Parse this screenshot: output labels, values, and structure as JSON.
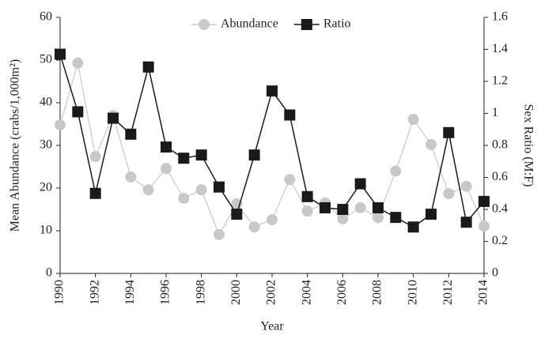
{
  "chart_data": {
    "type": "line",
    "x_label": "Year",
    "y_label": "Mean Abundance (crabs/1,000m²)",
    "y2_label": "Sex Ratio (M:F)",
    "x": [
      1990,
      1991,
      1992,
      1993,
      1994,
      1995,
      1996,
      1997,
      1998,
      1999,
      2000,
      2001,
      2002,
      2003,
      2004,
      2005,
      2006,
      2007,
      2008,
      2009,
      2010,
      2011,
      2012,
      2013,
      2014
    ],
    "xlim": [
      1990,
      2014
    ],
    "xticks": [
      1990,
      1992,
      1994,
      1996,
      1998,
      2000,
      2002,
      2004,
      2006,
      2008,
      2010,
      2012,
      2014
    ],
    "ylim": [
      0,
      60
    ],
    "yticks": [
      0,
      10,
      20,
      30,
      40,
      50,
      60
    ],
    "y2lim": [
      0,
      1.6
    ],
    "y2ticks": [
      0,
      0.2,
      0.4,
      0.6,
      0.8,
      1,
      1.2,
      1.4,
      1.6
    ],
    "grid": false,
    "legend": "top",
    "series": [
      {
        "name": "Abundance",
        "color": "#c8c8c8",
        "marker": "circle",
        "values": [
          34.8,
          49.3,
          27.4,
          37,
          22.6,
          19.6,
          24.6,
          17.6,
          19.6,
          9.1,
          16.3,
          10.9,
          12.6,
          22,
          14.6,
          16.5,
          12.8,
          15.4,
          13.1,
          24,
          36.1,
          30.2,
          18.7,
          20.4,
          11.1
        ]
      },
      {
        "name": "Ratio",
        "color": "#1a1a1a",
        "marker": "square",
        "axis": "y2",
        "values": [
          1.37,
          1.01,
          0.5,
          0.97,
          0.87,
          1.29,
          0.79,
          0.72,
          0.74,
          0.54,
          0.37,
          0.74,
          1.14,
          0.99,
          0.48,
          0.41,
          0.4,
          0.56,
          0.41,
          0.35,
          0.29,
          0.37,
          0.88,
          0.32,
          0.45
        ]
      }
    ]
  }
}
